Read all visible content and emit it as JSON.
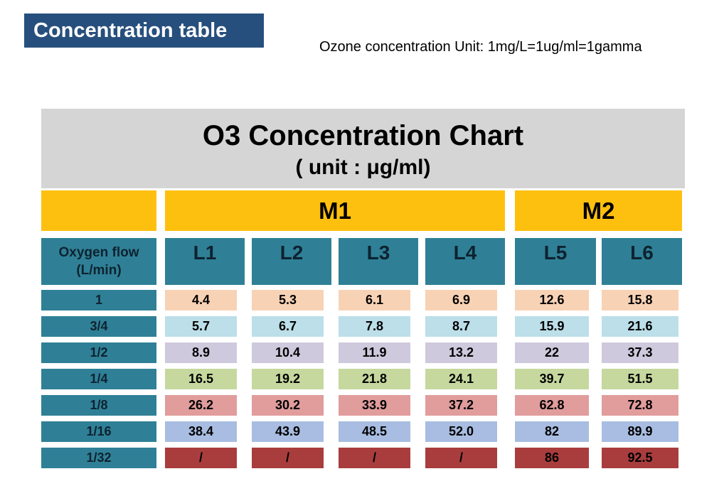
{
  "page": {
    "badge_label": "Concentration table",
    "unit_note": "Ozone concentration Unit: 1mg/L=1ug/ml=1gamma"
  },
  "colors": {
    "badge_bg": "#274F7D",
    "title_bg": "#D5D5D5",
    "group_header_bg": "#FEC00F",
    "column_header_bg": "#2F8096",
    "row_header_bg": "#2F8096",
    "missing_cell_bg": "#A93D3D"
  },
  "table": {
    "title": "O3 Concentration Chart",
    "subtitle": "( unit : μg/ml)",
    "groups": {
      "m1": "M1",
      "m2": "M2"
    },
    "flow_header": {
      "line1": "Oxygen flow",
      "line2": "(L/min)"
    },
    "cols": [
      "L1",
      "L2",
      "L3",
      "L4",
      "L5",
      "L6"
    ],
    "rows": [
      {
        "label": "1",
        "color": "#F8D2B4",
        "values": [
          "4.4",
          "5.3",
          "6.1",
          "6.9",
          "12.6",
          "15.8"
        ]
      },
      {
        "label": "3/4",
        "color": "#BCDFE9",
        "values": [
          "5.7",
          "6.7",
          "7.8",
          "8.7",
          "15.9",
          "21.6"
        ]
      },
      {
        "label": "1/2",
        "color": "#CFC9DD",
        "values": [
          "8.9",
          "10.4",
          "11.9",
          "13.2",
          "22",
          "37.3"
        ]
      },
      {
        "label": "1/4",
        "color": "#C6D89E",
        "values": [
          "16.5",
          "19.2",
          "21.8",
          "24.1",
          "39.7",
          "51.5"
        ]
      },
      {
        "label": "1/8",
        "color": "#E19C9C",
        "values": [
          "26.2",
          "30.2",
          "33.9",
          "37.2",
          "62.8",
          "72.8"
        ]
      },
      {
        "label": "1/16",
        "color": "#A8BDE1",
        "values": [
          "38.4",
          "43.9",
          "48.5",
          "52.0",
          "82",
          "89.9"
        ]
      },
      {
        "label": "1/32",
        "color": "#A93D3D",
        "values": [
          "/",
          "/",
          "/",
          "/",
          "86",
          "92.5"
        ]
      }
    ]
  },
  "chart_data": {
    "type": "table",
    "title": "O3 Concentration Chart",
    "unit": "μg/ml",
    "notes": "Ozone concentration Unit: 1mg/L=1ug/ml=1gamma",
    "column_groups": [
      {
        "label": "M1",
        "columns": [
          "L1",
          "L2",
          "L3",
          "L4"
        ]
      },
      {
        "label": "M2",
        "columns": [
          "L5",
          "L6"
        ]
      }
    ],
    "columns": [
      "L1",
      "L2",
      "L3",
      "L4",
      "L5",
      "L6"
    ],
    "row_axis_label": "Oxygen flow (L/min)",
    "row_labels": [
      "1",
      "3/4",
      "1/2",
      "1/4",
      "1/8",
      "1/16",
      "1/32"
    ],
    "values": [
      [
        4.4,
        5.3,
        6.1,
        6.9,
        12.6,
        15.8
      ],
      [
        5.7,
        6.7,
        7.8,
        8.7,
        15.9,
        21.6
      ],
      [
        8.9,
        10.4,
        11.9,
        13.2,
        22,
        37.3
      ],
      [
        16.5,
        19.2,
        21.8,
        24.1,
        39.7,
        51.5
      ],
      [
        26.2,
        30.2,
        33.9,
        37.2,
        62.8,
        72.8
      ],
      [
        38.4,
        43.9,
        48.5,
        52.0,
        82,
        89.9
      ],
      [
        null,
        null,
        null,
        null,
        86,
        92.5
      ]
    ]
  }
}
